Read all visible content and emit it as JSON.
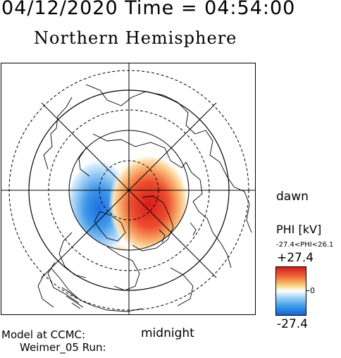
{
  "header": {
    "date_time": "04/12/2020 Time = 04:54:00"
  },
  "title": "Northern Hemisphere",
  "labels": {
    "dawn": "dawn",
    "midnight": "midnight"
  },
  "footer": {
    "model": "Model at CCMC:",
    "run": "Weimer_05 Run:"
  },
  "colorbar": {
    "title": "PHI [kV]",
    "range": "-27.4<PHI<26.1",
    "max": "+27.4",
    "zero": "0",
    "min": "-27.4",
    "colors": {
      "positive": "#d21e1e",
      "neutral": "#ffffff",
      "negative": "#1463d8"
    }
  }
}
